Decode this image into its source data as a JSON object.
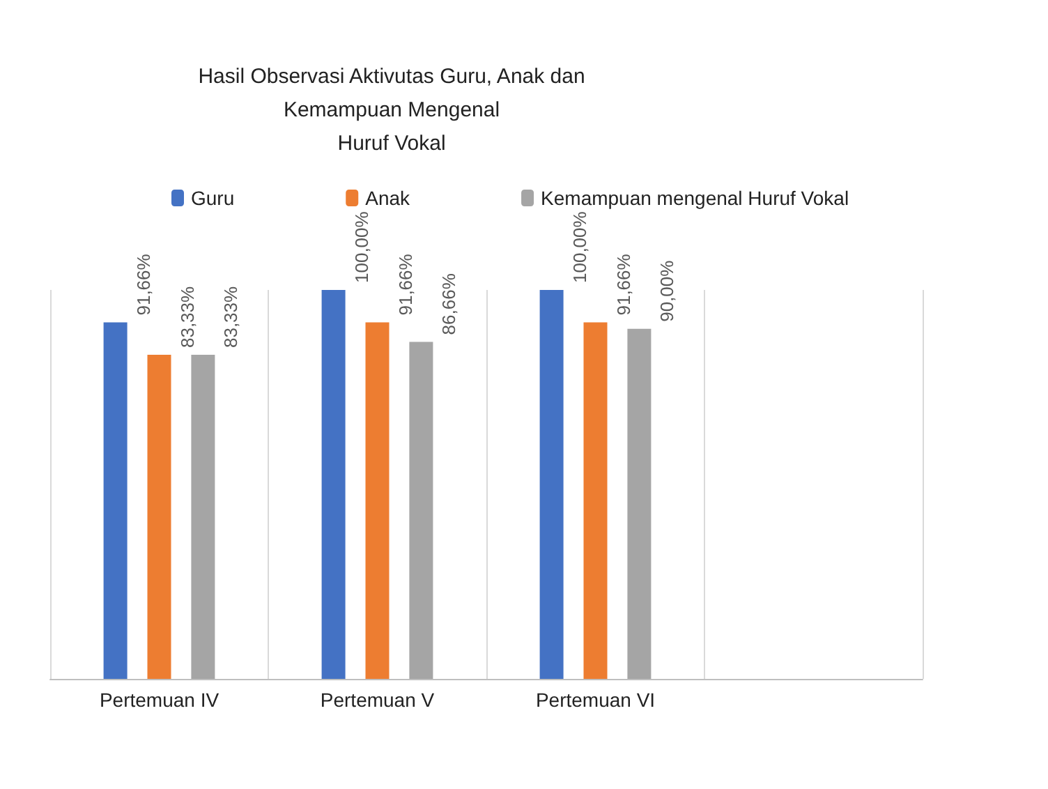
{
  "chart_data": {
    "type": "bar",
    "title": "Hasil Observasi Aktivutas Guru, Anak dan\nKemampuan Mengenal\nHuruf Vokal",
    "categories": [
      "Pertemuan IV",
      "Pertemuan V",
      "Pertemuan VI",
      null
    ],
    "series": [
      {
        "name": "Guru",
        "color": "#4472c4",
        "values": [
          91.66,
          100,
          100,
          null
        ],
        "value_labels": [
          "91,66%",
          "100,00%",
          "100,00%",
          null
        ]
      },
      {
        "name": "Anak",
        "color": "#ed7d31",
        "values": [
          83.33,
          91.66,
          91.66,
          null
        ],
        "value_labels": [
          "83,33%",
          "91,66%",
          "91,66%",
          null
        ]
      },
      {
        "name": "Kemampuan mengenal Huruf Vokal",
        "color": "#a5a5a5",
        "values": [
          83.33,
          86.66,
          90,
          null
        ],
        "value_labels": [
          "83,33%",
          "86,66%",
          "90,00%",
          null
        ]
      }
    ],
    "legend": "top",
    "grid": "x",
    "tick_labels": "x"
  }
}
